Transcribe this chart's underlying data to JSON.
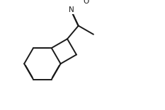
{
  "bg_color": "#ffffff",
  "line_color": "#1a1a1a",
  "line_width": 1.4,
  "doff": 0.012,
  "figsize": [
    2.33,
    1.56
  ],
  "dpi": 100,
  "N_label": "N",
  "O_label": "O"
}
